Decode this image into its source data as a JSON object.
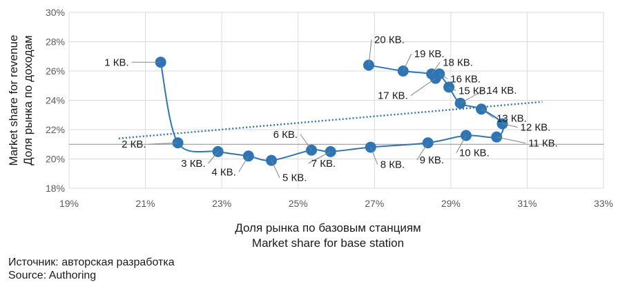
{
  "chart_data": {
    "type": "scatter",
    "xlabel": [
      "Доля рынка по базовым станциям",
      "Market share for base station"
    ],
    "ylabel": [
      "Market share for revenue",
      "Доля рынка по доходам"
    ],
    "xlim": [
      19,
      33
    ],
    "ylim": [
      18,
      30
    ],
    "x_ticks": [
      "19%",
      "21%",
      "23%",
      "25%",
      "27%",
      "29%",
      "31%",
      "33%"
    ],
    "y_ticks": [
      "18%",
      "20%",
      "22%",
      "24%",
      "26%",
      "28%",
      "30%"
    ],
    "grid": true,
    "series_color": "#2E75B6",
    "trendline": {
      "type": "linear",
      "style": "dotted",
      "x_range": [
        20.3,
        31.4
      ],
      "y_values": [
        21.4,
        23.9
      ]
    },
    "points": [
      {
        "label": "1 КВ.",
        "x": 21.4,
        "y": 26.6
      },
      {
        "label": "2 КВ.",
        "x": 21.85,
        "y": 21.1
      },
      {
        "label": "3 КВ.",
        "x": 22.9,
        "y": 20.5
      },
      {
        "label": "4 КВ.",
        "x": 23.7,
        "y": 20.2
      },
      {
        "label": "5 КВ.",
        "x": 24.3,
        "y": 19.9
      },
      {
        "label": "6 КВ.",
        "x": 25.35,
        "y": 20.6
      },
      {
        "label": "7 КВ.",
        "x": 25.85,
        "y": 20.5
      },
      {
        "label": "8 КВ.",
        "x": 26.9,
        "y": 20.8
      },
      {
        "label": "9 КВ.",
        "x": 28.4,
        "y": 21.1
      },
      {
        "label": "10 КВ.",
        "x": 29.4,
        "y": 21.6
      },
      {
        "label": "11 КВ.",
        "x": 30.2,
        "y": 21.5
      },
      {
        "label": "12 КВ.",
        "x": 30.35,
        "y": 22.4
      },
      {
        "label": "13 КВ.",
        "x": 29.8,
        "y": 23.4
      },
      {
        "label": "14 КВ.",
        "x": 29.25,
        "y": 23.8
      },
      {
        "label": "15 КВ.",
        "x": 28.95,
        "y": 24.9
      },
      {
        "label": "16 КВ.",
        "x": 28.7,
        "y": 25.8
      },
      {
        "label": "17 КВ.",
        "x": 28.6,
        "y": 25.5
      },
      {
        "label": "18 КВ.",
        "x": 28.5,
        "y": 25.8
      },
      {
        "label": "19 КВ.",
        "x": 27.75,
        "y": 26.0
      },
      {
        "label": "20 КВ.",
        "x": 26.85,
        "y": 26.4
      }
    ]
  },
  "source": {
    "line1": "Источник: авторская разработка",
    "line2": "Source: Authoring"
  }
}
